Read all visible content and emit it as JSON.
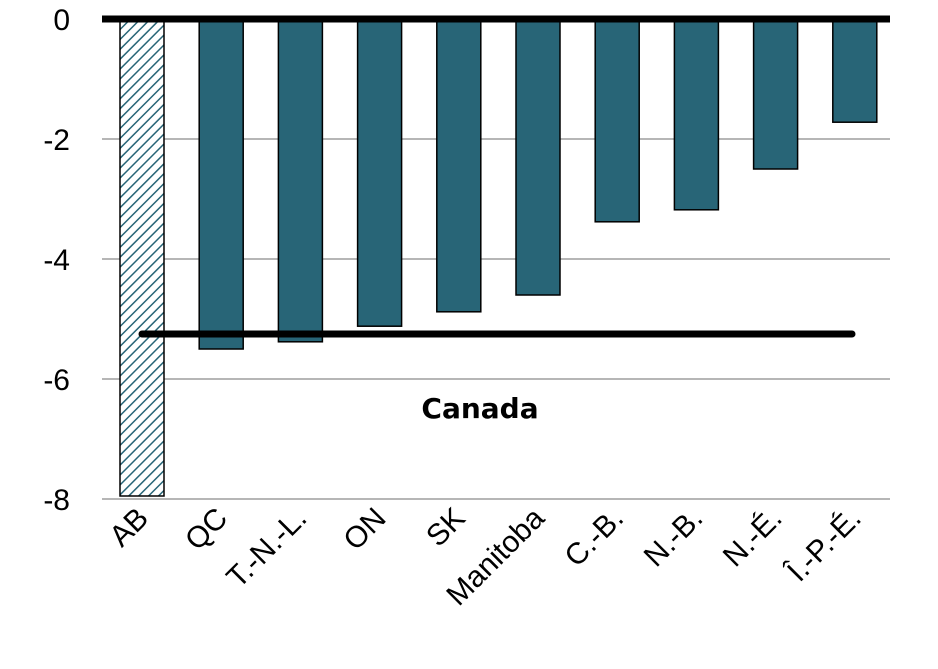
{
  "chart_data": {
    "type": "bar",
    "categories": [
      "AB",
      "QC",
      "T.-N.-L.",
      "ON",
      "SK",
      "Manitoba",
      "C.-B.",
      "N.-B.",
      "N.-É.",
      "Î.-P.-É."
    ],
    "values": [
      -7.95,
      -5.5,
      -5.38,
      -5.12,
      -4.88,
      -4.6,
      -3.38,
      -3.18,
      -2.5,
      -1.72
    ],
    "ylim": [
      -8,
      0
    ],
    "yticks": [
      0,
      -2,
      -4,
      -6,
      -8
    ],
    "grid": true,
    "reference_line": {
      "label": "Canada",
      "value": -5.25
    },
    "colors": {
      "bar": "#286577",
      "highlight_hatch": "#286577",
      "grid": "#9e9e9e",
      "axis": "#000000"
    },
    "highlight": {
      "category": "AB",
      "style": "hatched"
    },
    "title": "",
    "xlabel": "",
    "ylabel": ""
  }
}
